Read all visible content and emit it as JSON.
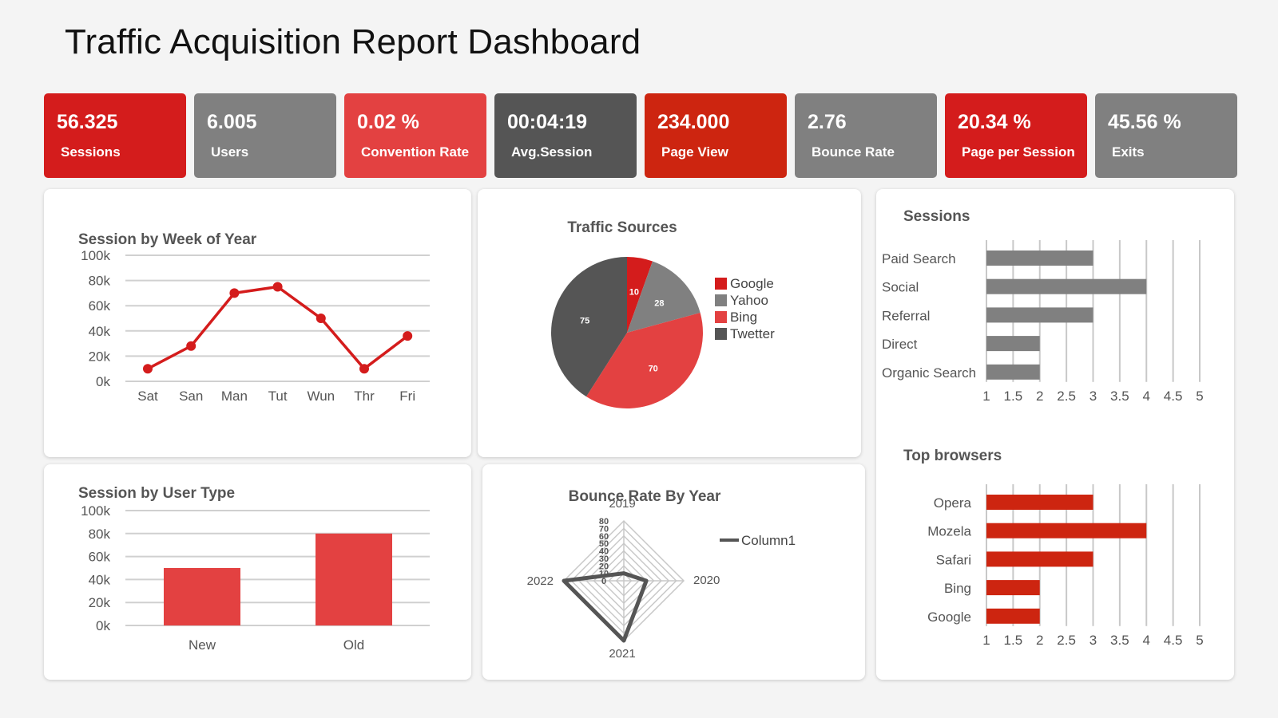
{
  "title": "Traffic Acquisition Report Dashboard",
  "kpis": [
    {
      "value": "56.325",
      "label": "Sessions",
      "color": "#d41c1c"
    },
    {
      "value": "6.005",
      "label": "Users",
      "color": "#808080"
    },
    {
      "value": "0.02 %",
      "label": "Convention Rate",
      "color": "#e34141"
    },
    {
      "value": "00:04:19",
      "label": "Avg.Session",
      "color": "#555555"
    },
    {
      "value": "234.000",
      "label": "Page View",
      "color": "#cd2510"
    },
    {
      "value": "2.76",
      "label": "Bounce Rate",
      "color": "#808080"
    },
    {
      "value": "20.34 %",
      "label": "Page per Session",
      "color": "#d41c1c"
    },
    {
      "value": "45.56 %",
      "label": "Exits",
      "color": "#808080"
    }
  ],
  "chart_data": [
    {
      "id": "week",
      "type": "line",
      "title": "Session by Week of Year",
      "categories": [
        "Sat",
        "San",
        "Man",
        "Tut",
        "Wun",
        "Thr",
        "Fri"
      ],
      "series": [
        {
          "values": [
            10000,
            28000,
            70000,
            75000,
            50000,
            10000,
            36000
          ],
          "color": "#d41c1c"
        }
      ],
      "yticks": [
        "0k",
        "20k",
        "40k",
        "60k",
        "80k",
        "100k"
      ],
      "ylim": [
        0,
        100000
      ],
      "grid": true
    },
    {
      "id": "sources",
      "type": "pie",
      "title": "Traffic Sources",
      "labels": [
        "Google",
        "Yahoo",
        "Bing",
        "Twetter"
      ],
      "values": [
        10,
        28,
        70,
        75
      ],
      "colors": [
        "#d41c1c",
        "#808080",
        "#e34141",
        "#555555"
      ],
      "legend": "right"
    },
    {
      "id": "sessions",
      "type": "bar",
      "orientation": "horizontal",
      "title": "Sessions",
      "categories": [
        "Paid Search",
        "Social",
        "Referral",
        "Direct",
        "Organic Search"
      ],
      "values": [
        3,
        4,
        3,
        2,
        2
      ],
      "xticks": [
        "1",
        "1.5",
        "2",
        "2.5",
        "3",
        "3.5",
        "4",
        "4.5",
        "5"
      ],
      "xlim": [
        1,
        5
      ],
      "color": "#808080"
    },
    {
      "id": "usertype",
      "type": "bar",
      "title": "Session by User Type",
      "categories": [
        "New",
        "Old"
      ],
      "values": [
        50000,
        80000
      ],
      "yticks": [
        "0k",
        "20k",
        "40k",
        "60k",
        "80k",
        "100k"
      ],
      "ylim": [
        0,
        100000
      ],
      "color": "#e34141"
    },
    {
      "id": "bounce",
      "type": "radar",
      "title": "Bounce Rate By Year",
      "categories": [
        "2019",
        "2020",
        "2021",
        "2022"
      ],
      "series": [
        {
          "name": "Column1",
          "values": [
            10,
            30,
            80,
            80
          ],
          "color": "#555555"
        }
      ],
      "rticks": [
        "0",
        "10",
        "20",
        "30",
        "40",
        "50",
        "60",
        "70",
        "80"
      ],
      "rlim": [
        0,
        80
      ],
      "legend": "right"
    },
    {
      "id": "browsers",
      "type": "bar",
      "orientation": "horizontal",
      "title": "Top browsers",
      "categories": [
        "Opera",
        "Mozela",
        "Safari",
        "Bing",
        "Google"
      ],
      "values": [
        3,
        4,
        3,
        2,
        2
      ],
      "xticks": [
        "1",
        "1.5",
        "2",
        "2.5",
        "3",
        "3.5",
        "4",
        "4.5",
        "5"
      ],
      "xlim": [
        1,
        5
      ],
      "color": "#cd2510"
    }
  ]
}
